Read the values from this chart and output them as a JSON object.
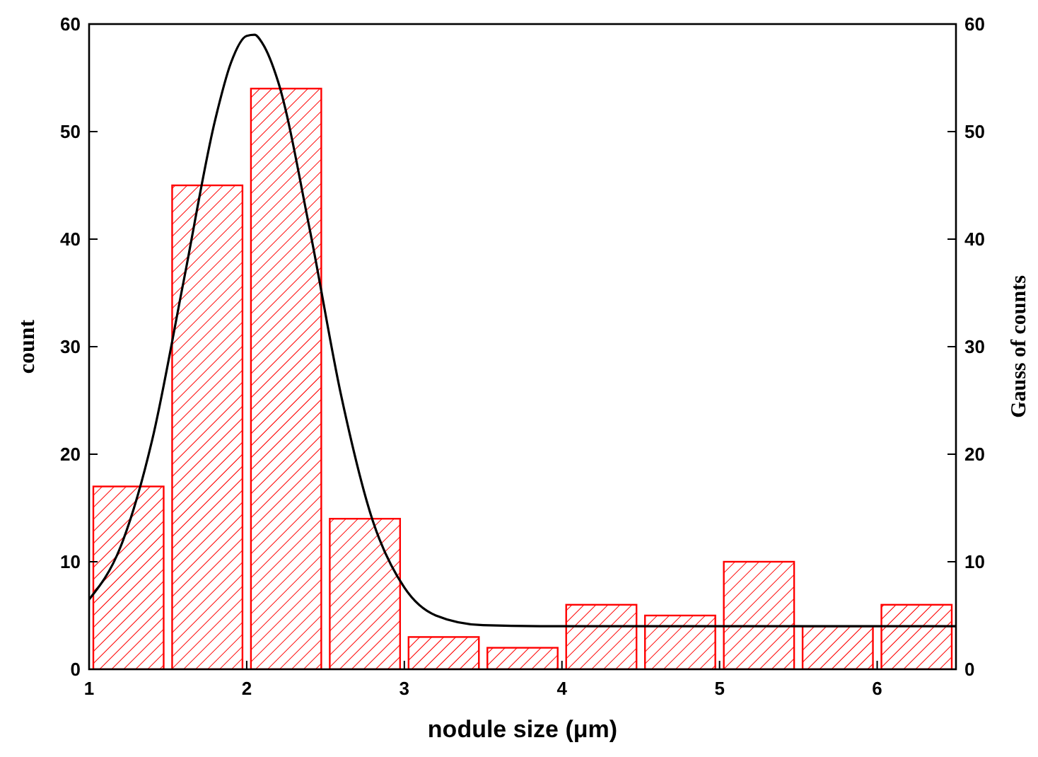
{
  "chart_data": {
    "type": "histogram",
    "xlabel": "nodule size (μm)",
    "ylabel": "count",
    "y2label": "Gauss of counts",
    "bins": [
      1,
      1.5,
      2,
      2.5,
      3,
      3.5,
      4,
      4.5,
      5,
      5.5,
      6,
      6.5
    ],
    "xlim": [
      1,
      6.5
    ],
    "xticks": [
      1,
      2,
      3,
      4,
      5,
      6
    ],
    "ylim": [
      0,
      60
    ],
    "yticks": [
      0,
      10,
      20,
      30,
      40,
      50,
      60
    ],
    "y2lim": [
      0,
      60
    ],
    "y2ticks": [
      0,
      10,
      20,
      30,
      40,
      50,
      60
    ],
    "series": [
      {
        "color": "#ff0000",
        "values": [
          17,
          45,
          54,
          14,
          3,
          2,
          6,
          5,
          10,
          4,
          6
        ]
      },
      {
        "type": "line",
        "axis": "y2",
        "color": "#000000",
        "x": [
          1,
          1.2,
          1.4,
          1.6,
          1.8,
          1.9,
          2.0,
          2.05,
          2.1,
          2.2,
          2.4,
          2.6,
          2.8,
          3.0,
          3.2,
          3.5,
          4,
          5,
          6,
          6.5
        ],
        "values": [
          6.5,
          11.4,
          21.3,
          36.1,
          51.1,
          56.4,
          58.9,
          59,
          58.2,
          54.6,
          40.9,
          25.4,
          13.8,
          7.6,
          5.0,
          4.1,
          4,
          4,
          4,
          4
        ]
      }
    ]
  }
}
